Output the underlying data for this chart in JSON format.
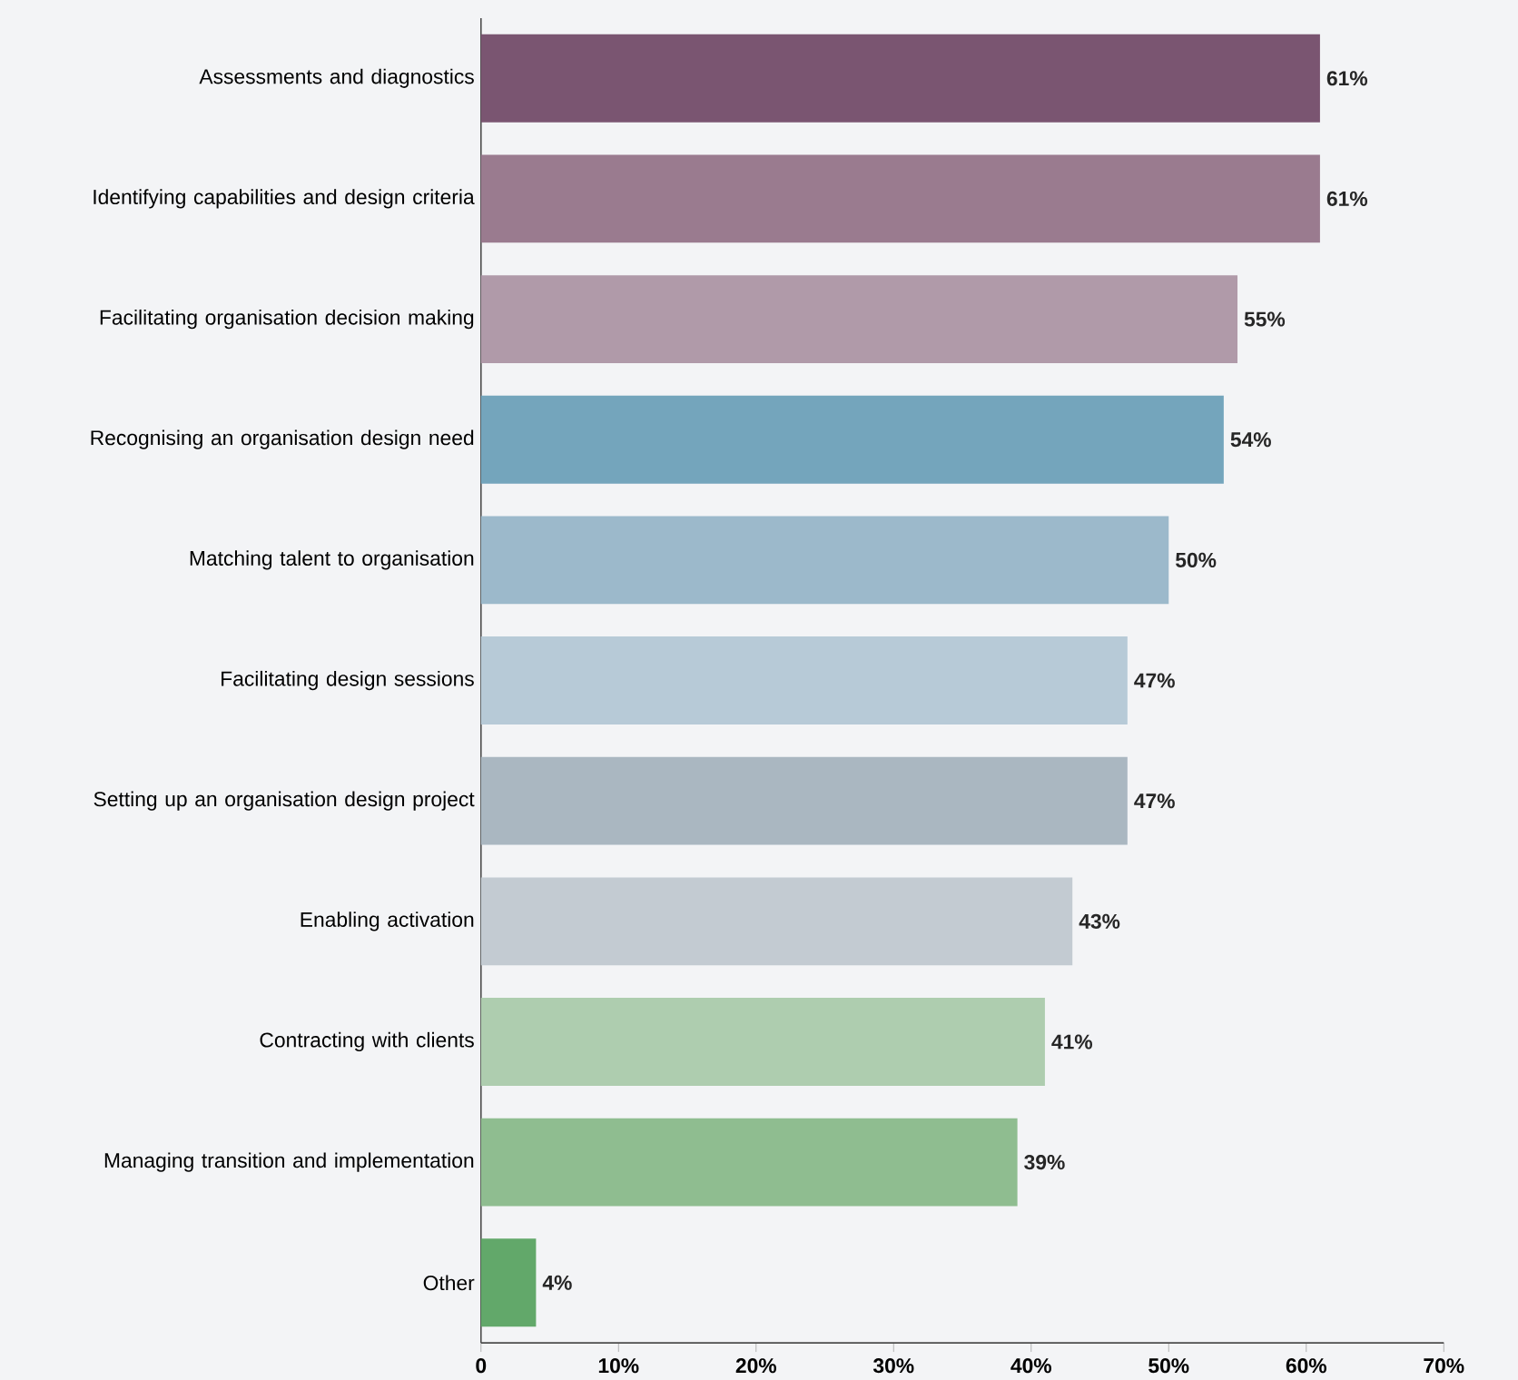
{
  "chart_data": {
    "type": "bar",
    "orientation": "horizontal",
    "categories": [
      "Assessments and diagnostics",
      "Identifying capabilities and design criteria",
      "Facilitating organisation decision making",
      "Recognising an organisation design need",
      "Matching talent to organisation",
      "Facilitating design sessions",
      "Setting up an organisation design project",
      "Enabling activation",
      "Contracting with clients",
      "Managing transition and implementation",
      "Other"
    ],
    "values": [
      61,
      61,
      55,
      54,
      50,
      47,
      47,
      43,
      41,
      39,
      4
    ],
    "value_labels": [
      "61%",
      "61%",
      "55%",
      "54%",
      "50%",
      "47%",
      "47%",
      "43%",
      "41%",
      "39%",
      "4%"
    ],
    "colors": [
      "#7a5571",
      "#9a7b8f",
      "#b09aa9",
      "#74a5bc",
      "#9cb9cb",
      "#b7cad7",
      "#aab7c1",
      "#c3cbd2",
      "#aecdaf",
      "#8fbd90",
      "#62a86a"
    ],
    "xlim": [
      0,
      70
    ],
    "xticks": [
      0,
      {
        "value": 10,
        "label": "10%"
      },
      {
        "value": 20,
        "label": "20%"
      },
      {
        "value": 30,
        "label": "30%"
      },
      {
        "value": 40,
        "label": "40%"
      },
      {
        "value": 50,
        "label": "50%"
      },
      {
        "value": 60,
        "label": "60%"
      },
      {
        "value": 70,
        "label": "70%"
      }
    ],
    "grid": false
  }
}
